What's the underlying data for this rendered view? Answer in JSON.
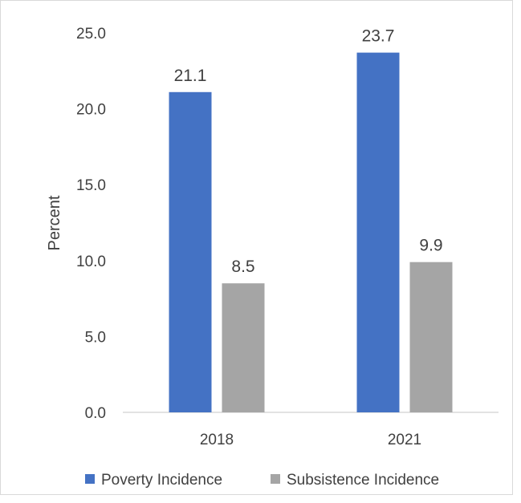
{
  "chart_data": {
    "type": "bar",
    "title": "",
    "xlabel": "",
    "ylabel": "Percent",
    "categories": [
      "2018",
      "2021"
    ],
    "ylim": [
      0,
      25
    ],
    "yticks": [
      "0.0",
      "5.0",
      "10.0",
      "15.0",
      "20.0",
      "25.0"
    ],
    "grid": false,
    "legend_position": "bottom",
    "series": [
      {
        "name": "Poverty Incidence",
        "color": "#4472c4",
        "values": [
          21.1,
          23.7
        ],
        "labels": [
          "21.1",
          "23.7"
        ]
      },
      {
        "name": "Subsistence Incidence",
        "color": "#a5a5a5",
        "values": [
          8.5,
          9.9
        ],
        "labels": [
          "8.5",
          "9.9"
        ]
      }
    ]
  }
}
